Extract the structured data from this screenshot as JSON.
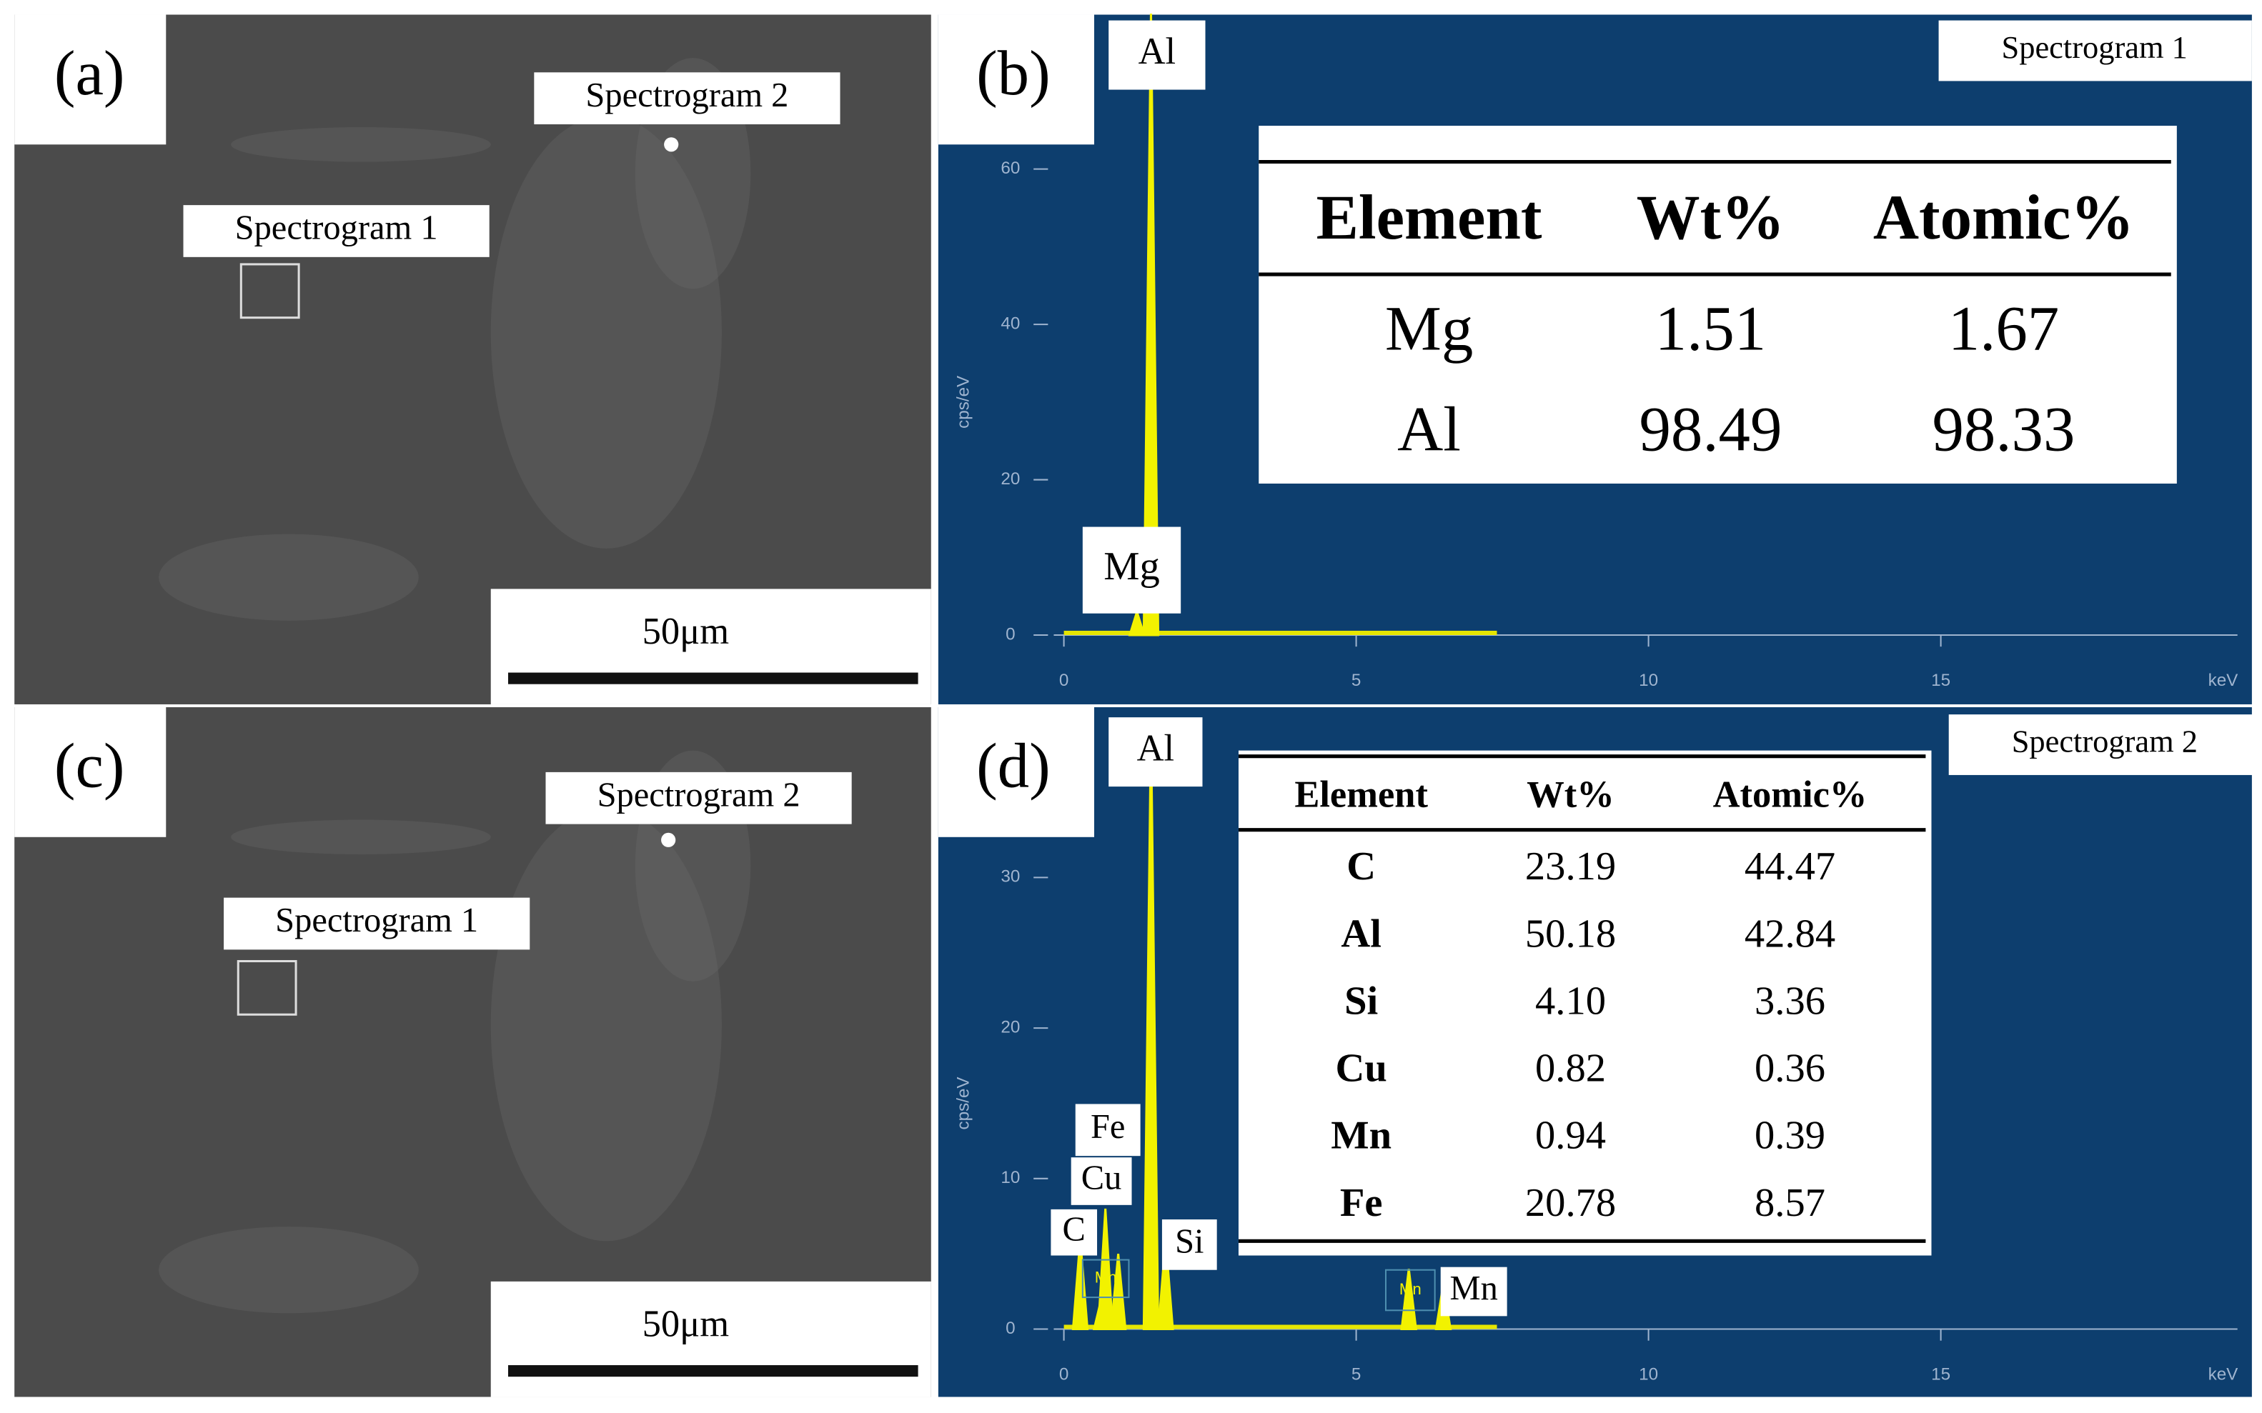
{
  "panel_a": {
    "label": "(a)",
    "spectrogram_1": "Spectrogram 1",
    "spectrogram_2": "Spectrogram 2",
    "scale_bar": "50μm"
  },
  "panel_b": {
    "label": "(b)",
    "spectrum_title": "Spectrogram 1",
    "y_axis_label": "cps/eV",
    "x_axis_label": "keV",
    "xlim": [
      0,
      20
    ],
    "xticks": [
      0,
      5,
      10,
      15
    ],
    "ylim": [
      0,
      60
    ],
    "yticks": [
      0,
      20,
      40,
      60
    ],
    "peaks": [
      {
        "element": "Al",
        "energy": 1.49,
        "height": 80
      },
      {
        "element": "Mg",
        "energy": 1.25,
        "height": 3
      }
    ],
    "table": {
      "header": [
        "Element",
        "Wt%",
        "Atomic%"
      ],
      "rows": [
        [
          "Mg",
          "1.51",
          "1.67"
        ],
        [
          "Al",
          "98.49",
          "98.33"
        ]
      ]
    }
  },
  "panel_c": {
    "label": "(c)",
    "spectrogram_1": "Spectrogram 1",
    "spectrogram_2": "Spectrogram 2",
    "scale_bar": "50μm"
  },
  "panel_d": {
    "label": "(d)",
    "spectrum_title": "Spectrogram 2",
    "y_axis_label": "cps/eV",
    "x_axis_label": "keV",
    "xlim": [
      0,
      20
    ],
    "xticks": [
      0,
      5,
      10,
      15
    ],
    "ylim": [
      0,
      30
    ],
    "yticks": [
      0,
      10,
      20,
      30
    ],
    "peaks": [
      {
        "element": "Al",
        "energy": 1.49,
        "height": 40
      },
      {
        "element": "Fe",
        "energy": 0.71,
        "height": 8
      },
      {
        "element": "Cu",
        "energy": 0.93,
        "height": 5
      },
      {
        "element": "C",
        "energy": 0.28,
        "height": 6
      },
      {
        "element": "Si",
        "energy": 1.74,
        "height": 6
      },
      {
        "element": "Mn",
        "energy": 6.49,
        "height": 3
      },
      {
        "element": "Mn",
        "energy": 0.64,
        "height": 2
      },
      {
        "element": "Mn",
        "energy": 5.9,
        "height": 4
      }
    ],
    "table": {
      "header": [
        "Element",
        "Wt%",
        "Atomic%"
      ],
      "rows": [
        [
          "C",
          "23.19",
          "44.47"
        ],
        [
          "Al",
          "50.18",
          "42.84"
        ],
        [
          "Si",
          "4.10",
          "3.36"
        ],
        [
          "Cu",
          "0.82",
          "0.36"
        ],
        [
          "Mn",
          "0.94",
          "0.39"
        ],
        [
          "Fe",
          "20.78",
          "8.57"
        ]
      ]
    }
  }
}
